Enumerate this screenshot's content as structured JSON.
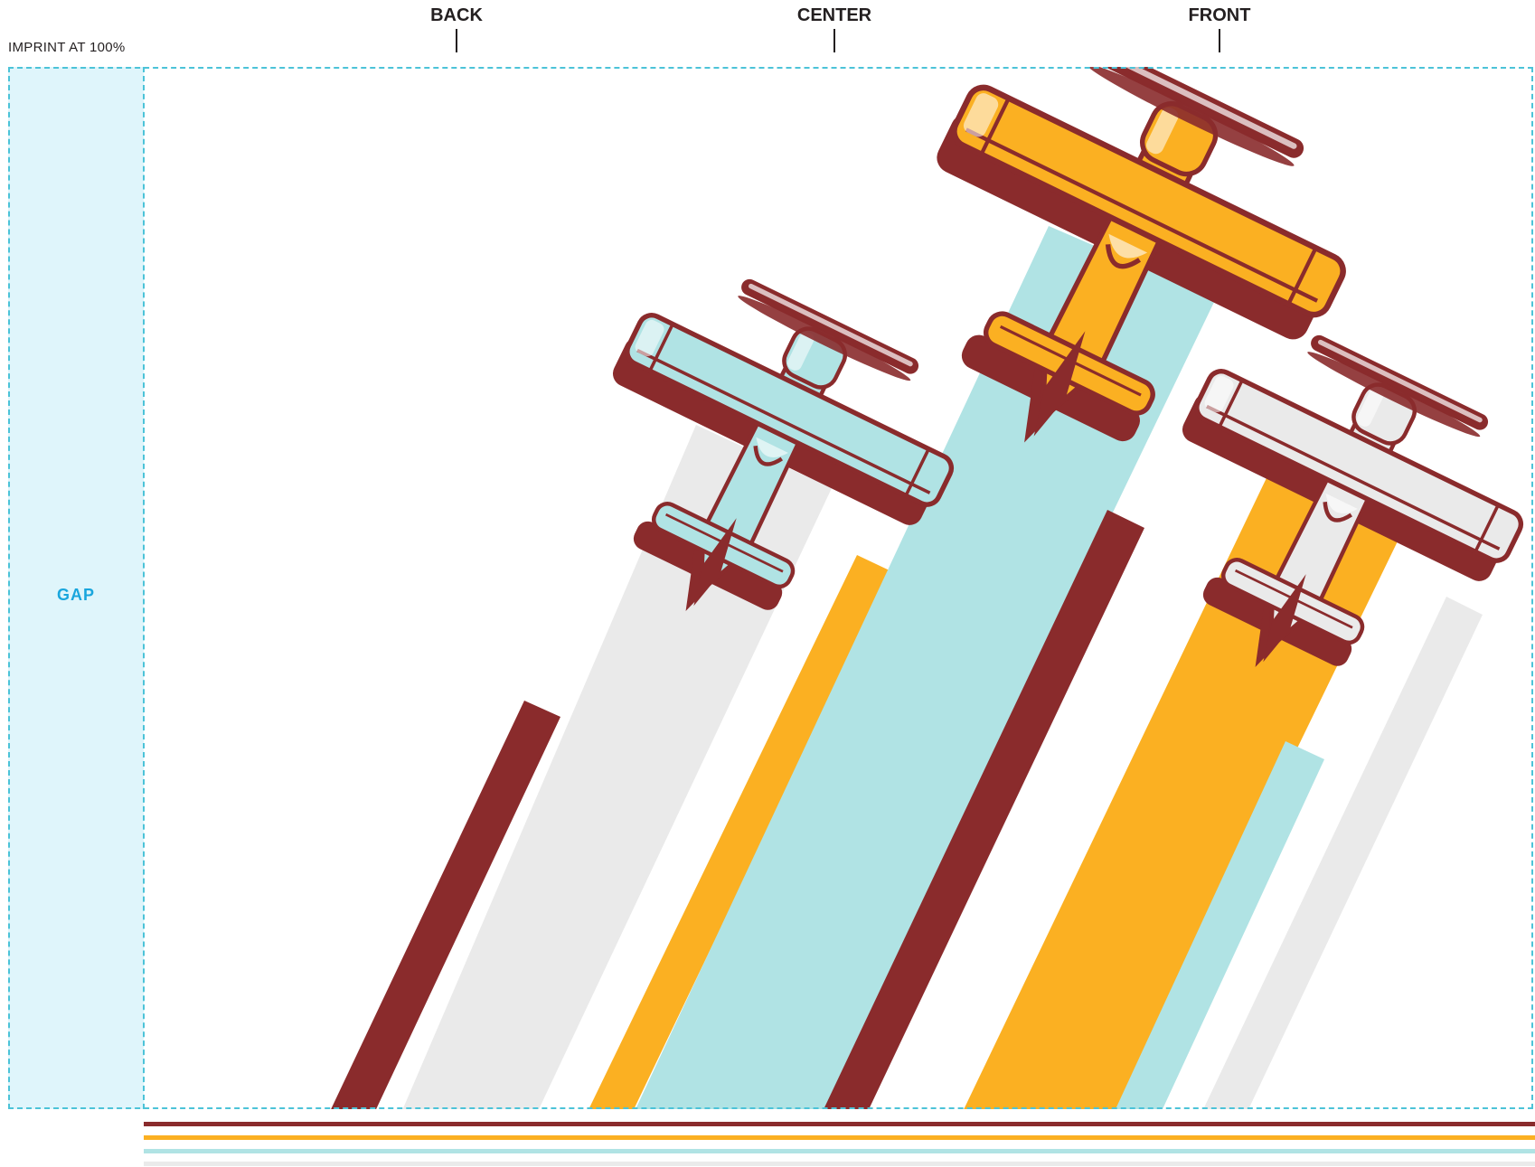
{
  "header": {
    "imprint_label": "IMPRINT AT 100%",
    "positions": [
      {
        "label": "BACK"
      },
      {
        "label": "CENTER"
      },
      {
        "label": "FRONT"
      }
    ]
  },
  "gap": {
    "label": "GAP"
  },
  "colors": {
    "maroon": "#8a2b2c",
    "gold": "#fbb022",
    "aqua": "#b0e3e4",
    "light_gray": "#eaeaea",
    "guide_cyan": "#4cc3d8"
  },
  "artwork": {
    "planes": [
      {
        "name": "plane-aqua",
        "fill": "#b0e3e4"
      },
      {
        "name": "plane-gold",
        "fill": "#fbb022"
      },
      {
        "name": "plane-gray",
        "fill": "#eaeaea"
      }
    ]
  },
  "swatches": [
    "#8a2b2c",
    "#fbb022",
    "#b0e3e4",
    "#eaeaea"
  ]
}
